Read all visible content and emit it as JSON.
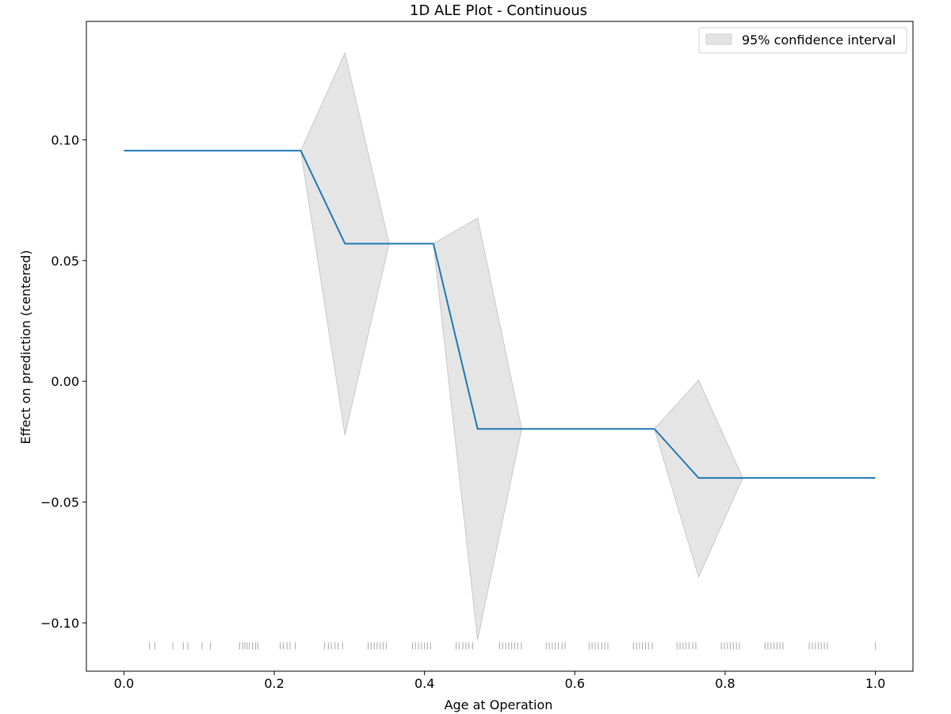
{
  "chart_data": {
    "type": "line",
    "title": "1D ALE Plot - Continuous",
    "xlabel": "Age at Operation",
    "ylabel": "Effect on prediction (centered)",
    "xlim": [
      -0.05,
      1.05
    ],
    "ylim": [
      -0.12,
      0.149
    ],
    "xticks": [
      0.0,
      0.2,
      0.4,
      0.6,
      0.8,
      1.0
    ],
    "xtick_labels": [
      "0.0",
      "0.2",
      "0.4",
      "0.6",
      "0.8",
      "1.0"
    ],
    "yticks": [
      -0.1,
      -0.05,
      0.0,
      0.05,
      0.1
    ],
    "ytick_labels": [
      "−0.10",
      "−0.05",
      "0.00",
      "0.05",
      "0.10"
    ],
    "grid": false,
    "legend": {
      "location": "upper right",
      "entries": [
        "95% confidence interval"
      ]
    },
    "series": [
      {
        "x": [
          0.0,
          0.1176,
          0.2353,
          0.2941,
          0.3529,
          0.4118,
          0.4706,
          0.5294,
          0.6471,
          0.7059,
          0.7647,
          0.8235,
          0.9412,
          1.0
        ],
        "values": [
          0.0955,
          0.0955,
          0.0955,
          0.057,
          0.057,
          0.057,
          -0.0197,
          -0.0197,
          -0.0197,
          -0.0197,
          -0.04,
          -0.04,
          -0.04,
          -0.04
        ],
        "color": "#1f77b4"
      }
    ],
    "confidence_band": {
      "name": "95% confidence interval",
      "x": [
        0.0,
        0.1176,
        0.2353,
        0.2941,
        0.3529,
        0.4118,
        0.4706,
        0.5294,
        0.6471,
        0.7059,
        0.7647,
        0.8235,
        0.9412,
        1.0
      ],
      "lower": [
        0.0955,
        0.0955,
        0.0955,
        -0.0222,
        0.057,
        0.057,
        -0.107,
        -0.0197,
        -0.0197,
        -0.0197,
        -0.081,
        -0.04,
        -0.04,
        -0.04
      ],
      "upper": [
        0.0955,
        0.0955,
        0.0955,
        0.136,
        0.057,
        0.057,
        0.0675,
        -0.0197,
        -0.0197,
        -0.0197,
        0.0005,
        -0.04,
        -0.04,
        -0.04
      ],
      "color": "#d3d3d3"
    },
    "rug": {
      "y": -0.1095,
      "x": [
        0.034,
        0.041,
        0.065,
        0.079,
        0.085,
        0.104,
        0.115,
        0.154,
        0.158,
        0.161,
        0.164,
        0.167,
        0.171,
        0.175,
        0.178,
        0.208,
        0.212,
        0.217,
        0.221,
        0.228,
        0.267,
        0.272,
        0.276,
        0.281,
        0.285,
        0.291,
        0.325,
        0.329,
        0.333,
        0.337,
        0.341,
        0.345,
        0.349,
        0.384,
        0.388,
        0.392,
        0.396,
        0.4,
        0.404,
        0.408,
        0.442,
        0.446,
        0.451,
        0.455,
        0.459,
        0.464,
        0.5,
        0.504,
        0.508,
        0.512,
        0.516,
        0.52,
        0.524,
        0.529,
        0.562,
        0.566,
        0.57,
        0.574,
        0.578,
        0.583,
        0.587,
        0.619,
        0.623,
        0.627,
        0.631,
        0.636,
        0.64,
        0.644,
        0.678,
        0.682,
        0.686,
        0.69,
        0.694,
        0.698,
        0.703,
        0.736,
        0.74,
        0.744,
        0.748,
        0.752,
        0.757,
        0.761,
        0.795,
        0.799,
        0.803,
        0.807,
        0.811,
        0.815,
        0.819,
        0.853,
        0.857,
        0.861,
        0.865,
        0.869,
        0.873,
        0.877,
        0.912,
        0.916,
        0.92,
        0.924,
        0.928,
        0.932,
        0.936,
        1.0
      ],
      "color": "#000000"
    }
  }
}
